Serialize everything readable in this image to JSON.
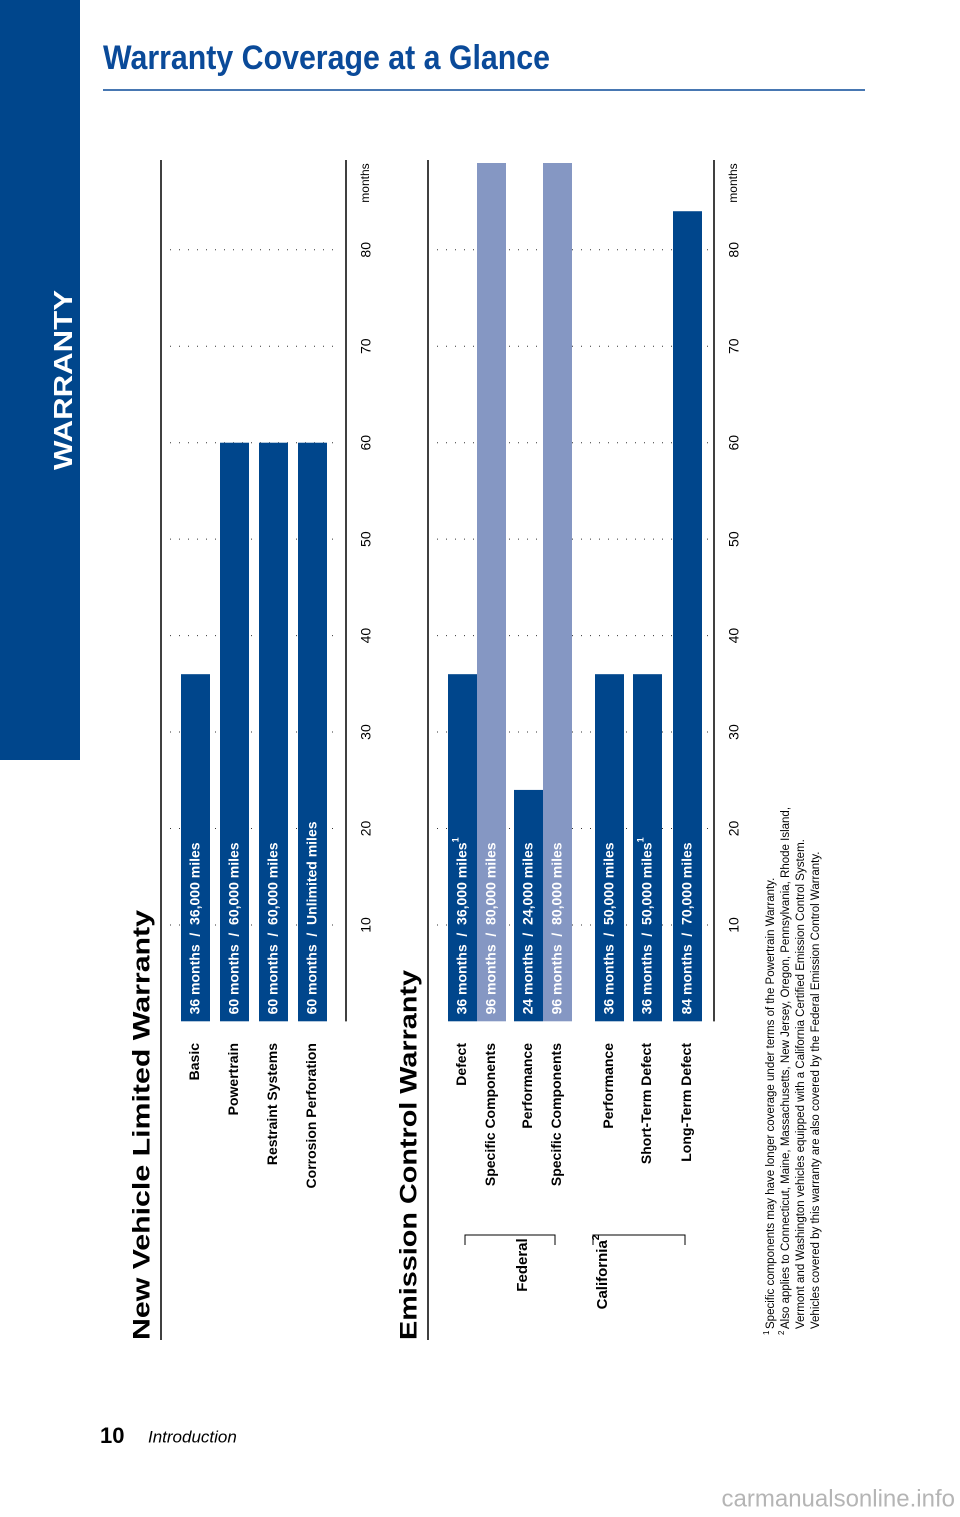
{
  "header": {
    "sidebar": "WARRANTY",
    "title": "Warranty Coverage at a Glance"
  },
  "chart_data": [
    {
      "type": "bar",
      "title": "New Vehicle Limited Warranty",
      "categories": [
        "Basic",
        "Powertrain",
        "Restraint Systems",
        "Corrosion Perforation"
      ],
      "values": [
        36,
        60,
        60,
        60
      ],
      "value_labels": [
        "36 months  /  36,000 miles",
        "60 months  /  60,000 miles",
        "60 months  /  60,000 miles",
        "60 months  /  Unlimited miles"
      ],
      "colors": [
        "#00468c",
        "#00468c",
        "#00468c",
        "#00468c"
      ],
      "xlabel": "months",
      "xlim": [
        0,
        89
      ],
      "xticks": [
        10,
        20,
        30,
        40,
        50,
        60,
        70,
        80
      ],
      "grid": true
    },
    {
      "type": "bar",
      "title": "Emission Control Warranty",
      "groups": [
        {
          "name": "Federal",
          "categories": [
            "Defect",
            "Specific Components",
            "Performance",
            "Specific Components"
          ],
          "values": [
            36,
            96,
            24,
            96
          ],
          "value_labels": [
            "36 months  /  36,000 miles",
            "96 months  /  80,000 miles",
            "24 months  /  24,000 miles",
            "96 months  /  80,000 miles"
          ],
          "value_label_notes": [
            "1",
            null,
            null,
            null
          ],
          "colors": [
            "#00468c",
            "#8597c3",
            "#00468c",
            "#8597c3"
          ]
        },
        {
          "name": "California",
          "note": "2",
          "categories": [
            "Performance",
            "Short-Term Defect",
            "Long-Term Defect"
          ],
          "values": [
            36,
            36,
            84
          ],
          "value_labels": [
            "36 months  /  50,000 miles",
            "36 months  /  50,000 miles",
            "84 months  /  70,000 miles"
          ],
          "value_label_notes": [
            null,
            "1",
            null
          ],
          "colors": [
            "#00468c",
            "#00468c",
            "#00468c"
          ]
        }
      ],
      "xlabel": "months",
      "xlim": [
        0,
        89
      ],
      "xticks": [
        10,
        20,
        30,
        40,
        50,
        60,
        70,
        80
      ],
      "grid": true
    }
  ],
  "footnotes": [
    {
      "mark": "1",
      "lines": [
        "Specific components may have longer coverage under terms of the Powertrain Warranty."
      ]
    },
    {
      "mark": "2",
      "lines": [
        "Also applies to Connecticut, Maine, Massachusetts, New Jersey, Oregon, Pennsylvania, Rhode Island,",
        "Vermont and Washington vehicles equipped with a California Certified Emission Control System.",
        "Vehicles covered by this warranty are also covered by the Federal Emission Control Warranty."
      ]
    }
  ],
  "footer": {
    "page": "10",
    "section": "Introduction"
  },
  "watermark": "carmanualsonline.info"
}
